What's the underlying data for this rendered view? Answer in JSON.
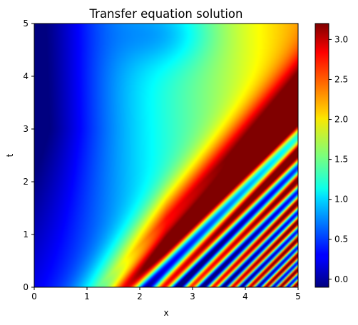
{
  "chart_data": {
    "type": "heatmap",
    "title": "Transfer equation solution",
    "xlabel": "x",
    "ylabel": "t",
    "xlim": [
      0,
      5
    ],
    "ylim": [
      0,
      5
    ],
    "x_ticks": [
      "0",
      "1",
      "2",
      "3",
      "4",
      "5"
    ],
    "y_ticks": [
      "0",
      "1",
      "2",
      "3",
      "4",
      "5"
    ],
    "colormap": "jet",
    "colorbar": {
      "range": [
        -0.1,
        3.2
      ],
      "ticks": [
        "0.0",
        "0.5",
        "1.0",
        "1.5",
        "2.0",
        "2.5",
        "3.0"
      ],
      "tick_values": [
        0.0,
        0.5,
        1.0,
        1.5,
        2.0,
        2.5,
        3.0
      ]
    },
    "grid": false
  }
}
